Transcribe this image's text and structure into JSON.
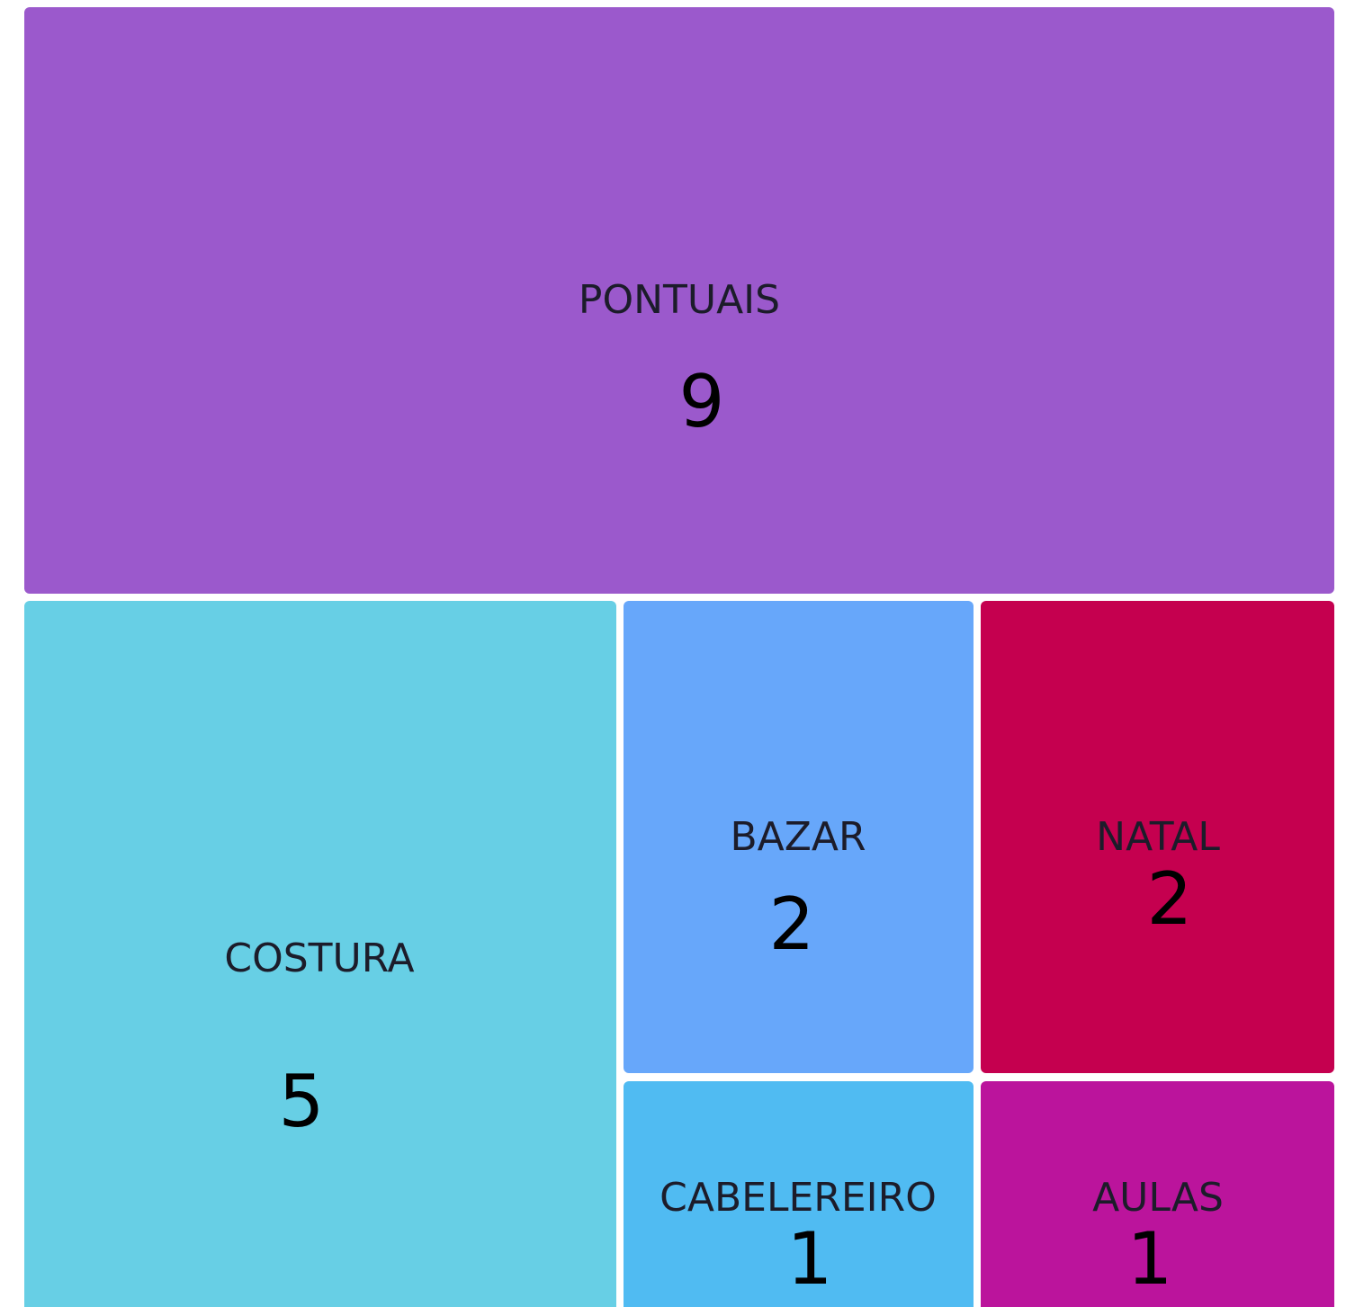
{
  "chart_data": {
    "type": "treemap",
    "categories": [
      "PONTUAIS",
      "COSTURA",
      "BAZAR",
      "NATAL",
      "CABELEREIRO",
      "AULAS"
    ],
    "values": [
      9,
      5,
      2,
      2,
      1,
      1
    ],
    "colors": [
      "#9b59cc",
      "#67cfe5",
      "#67a7fa",
      "#c5004f",
      "#50bbf2",
      "#bb149c"
    ]
  }
}
